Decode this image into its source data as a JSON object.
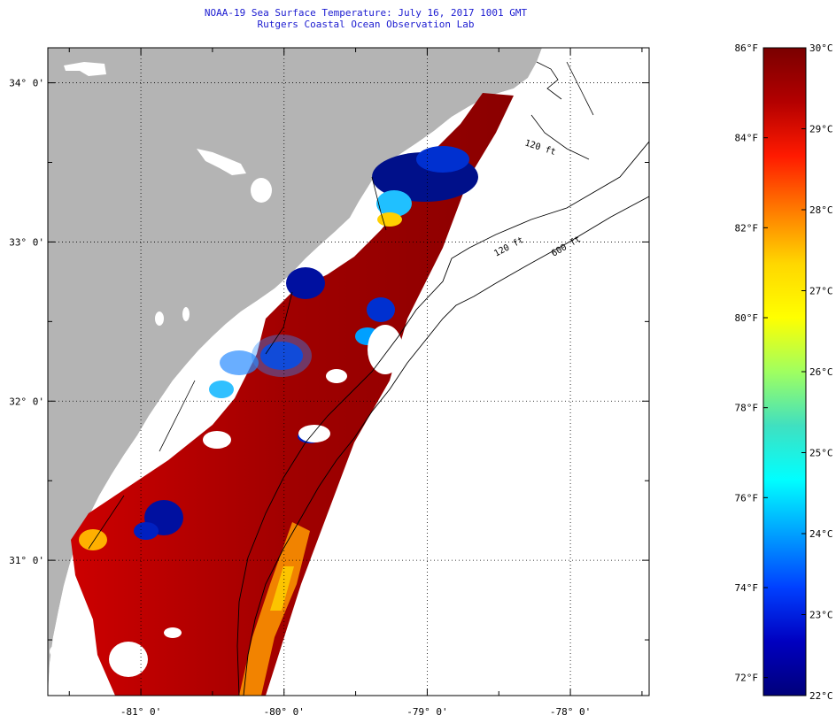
{
  "title_line_1": "NOAA-19 Sea Surface Temperature:  July 16, 2017 1001 GMT",
  "title_line_2": "Rutgers Coastal Ocean Observation Lab",
  "map": {
    "lon_range": [
      -81.65,
      -77.45
    ],
    "lat_range": [
      30.15,
      34.22
    ],
    "lon_ticks": [
      {
        "value": -81,
        "label": "-81° 0'"
      },
      {
        "value": -80,
        "label": "-80° 0'"
      },
      {
        "value": -79,
        "label": "-79° 0'"
      },
      {
        "value": -78,
        "label": "-78° 0'"
      }
    ],
    "lat_ticks": [
      {
        "value": 34,
        "label": "34° 0'"
      },
      {
        "value": 33,
        "label": "33° 0'"
      },
      {
        "value": 32,
        "label": "32° 0'"
      },
      {
        "value": 31,
        "label": "31° 0'"
      }
    ],
    "depth_labels": [
      "120 ft",
      "600 ft",
      "120 ft"
    ],
    "colors": {
      "land": "#b4b4b4",
      "ocean_nodata": "#ffffff",
      "cloud": "#ffffff"
    }
  },
  "colorbar": {
    "fahrenheit_labels": [
      {
        "value": 86,
        "label": "86°F"
      },
      {
        "value": 84,
        "label": "84°F"
      },
      {
        "value": 82,
        "label": "82°F"
      },
      {
        "value": 80,
        "label": "80°F"
      },
      {
        "value": 78,
        "label": "78°F"
      },
      {
        "value": 76,
        "label": "76°F"
      },
      {
        "value": 74,
        "label": "74°F"
      },
      {
        "value": 72,
        "label": "72°F"
      }
    ],
    "celsius_labels": [
      {
        "value": 30,
        "label": "30°C"
      },
      {
        "value": 29,
        "label": "29°C"
      },
      {
        "value": 28,
        "label": "28°C"
      },
      {
        "value": 27,
        "label": "27°C"
      },
      {
        "value": 26,
        "label": "26°C"
      },
      {
        "value": 25,
        "label": "25°C"
      },
      {
        "value": 24,
        "label": "24°C"
      },
      {
        "value": 23,
        "label": "23°C"
      },
      {
        "value": 22,
        "label": "22°C"
      }
    ],
    "celsius_range": [
      22,
      30
    ],
    "colors_top_to_bottom": [
      "#7a0000",
      "#b30000",
      "#ff1a00",
      "#ff7a00",
      "#ffd700",
      "#ffff00",
      "#a0ff60",
      "#40e0c0",
      "#00ffff",
      "#00a0ff",
      "#0040ff",
      "#0000c0",
      "#00007a"
    ]
  }
}
